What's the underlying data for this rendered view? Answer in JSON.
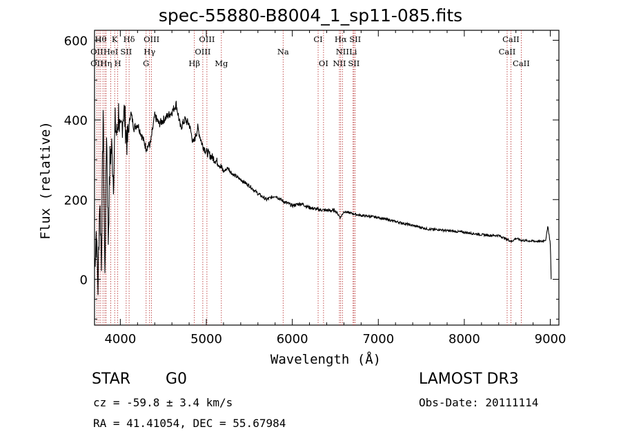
{
  "chart_data": {
    "type": "line",
    "title": "spec-55880-B8004_1_sp11-085.fits",
    "xlabel": "Wavelength (Å)",
    "ylabel": "Flux (relative)",
    "xlim": [
      3700,
      9100
    ],
    "ylim": [
      -115,
      625
    ],
    "x_ticks": [
      4000,
      5000,
      6000,
      7000,
      8000,
      9000
    ],
    "y_ticks": [
      0,
      200,
      400,
      600
    ],
    "series": [
      {
        "name": "spectrum",
        "x": [
          3700,
          3720,
          3740,
          3760,
          3780,
          3800,
          3820,
          3840,
          3860,
          3880,
          3900,
          3920,
          3940,
          3960,
          3980,
          4000,
          4040,
          4080,
          4120,
          4160,
          4200,
          4250,
          4300,
          4350,
          4400,
          4450,
          4500,
          4550,
          4600,
          4650,
          4700,
          4750,
          4800,
          4850,
          4900,
          4950,
          5000,
          5050,
          5100,
          5150,
          5200,
          5250,
          5300,
          5400,
          5500,
          5600,
          5700,
          5800,
          5900,
          6000,
          6100,
          6200,
          6300,
          6400,
          6500,
          6560,
          6600,
          6700,
          6800,
          6900,
          7000,
          7100,
          7200,
          7300,
          7400,
          7500,
          7600,
          7700,
          7800,
          7900,
          8000,
          8100,
          8200,
          8300,
          8400,
          8500,
          8550,
          8600,
          8660,
          8700,
          8800,
          8900,
          8950,
          8970,
          9000,
          9010
        ],
        "y": [
          30,
          120,
          -20,
          200,
          50,
          430,
          0,
          380,
          100,
          300,
          330,
          250,
          390,
          360,
          420,
          350,
          430,
          340,
          420,
          380,
          390,
          360,
          330,
          340,
          410,
          390,
          400,
          410,
          420,
          440,
          380,
          400,
          390,
          340,
          380,
          340,
          320,
          310,
          300,
          290,
          270,
          280,
          265,
          250,
          235,
          215,
          200,
          210,
          195,
          185,
          190,
          180,
          175,
          173,
          172,
          155,
          170,
          165,
          160,
          158,
          155,
          150,
          145,
          140,
          135,
          130,
          125,
          125,
          122,
          120,
          118,
          115,
          112,
          110,
          110,
          100,
          95,
          103,
          98,
          97,
          96,
          95,
          100,
          135,
          90,
          0
        ]
      }
    ],
    "lines": {
      "top_row": [
        "Hθ",
        "K",
        "Hδ",
        "OIII",
        "OIII",
        "CI",
        "Hα",
        "SII",
        "CaII"
      ],
      "mid_row": [
        "OII",
        "HeI",
        "SII",
        "Hγ",
        "OIII",
        "Na",
        "NII",
        "Li",
        "CaII"
      ],
      "low_row": [
        "OII",
        "Hη",
        "H",
        "G",
        "Hβ",
        "Mg",
        "OI",
        "NII",
        "SII",
        "CaII"
      ]
    }
  },
  "footer": {
    "class_label": "STAR",
    "subclass": "G0",
    "survey": "LAMOST DR3",
    "cz_line": "cz = -59.8 ± 3.4 km/s",
    "obs_date": "Obs-Date: 20111114",
    "coords": "RA =  41.41054, DEC =  55.67984"
  }
}
